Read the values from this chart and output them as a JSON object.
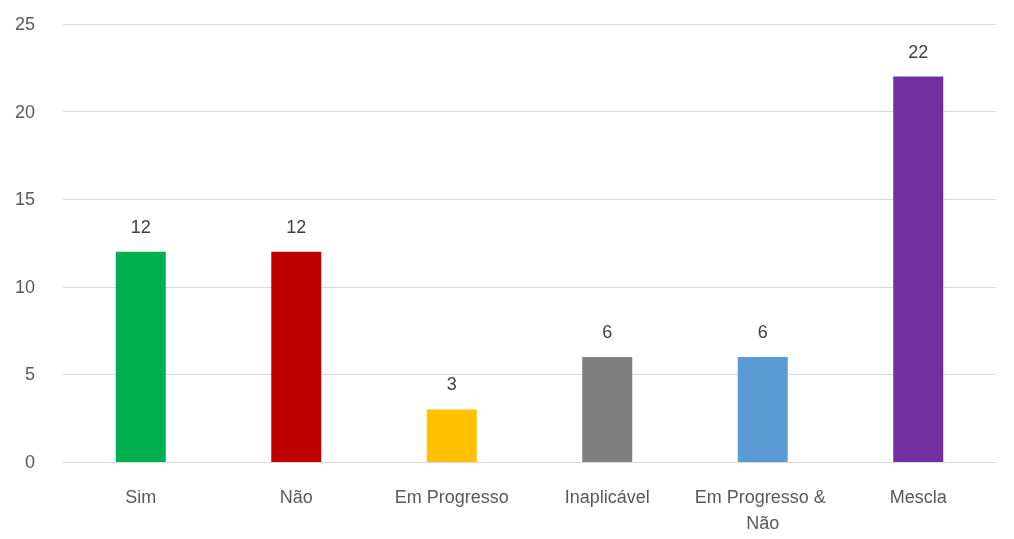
{
  "chart_data": {
    "type": "bar",
    "categories": [
      "Sim",
      "Não",
      "Em Progresso",
      "Inaplicável",
      "Em Progresso & Não",
      "Mescla"
    ],
    "values": [
      12,
      12,
      3,
      6,
      6,
      22
    ],
    "colors": [
      "#00b050",
      "#c00000",
      "#ffc000",
      "#7f7f7f",
      "#5b9bd5",
      "#7030a0"
    ],
    "ylim": [
      0,
      25
    ],
    "yticks": [
      0,
      5,
      10,
      15,
      20,
      25
    ],
    "grid": "y",
    "data_labels": true
  }
}
